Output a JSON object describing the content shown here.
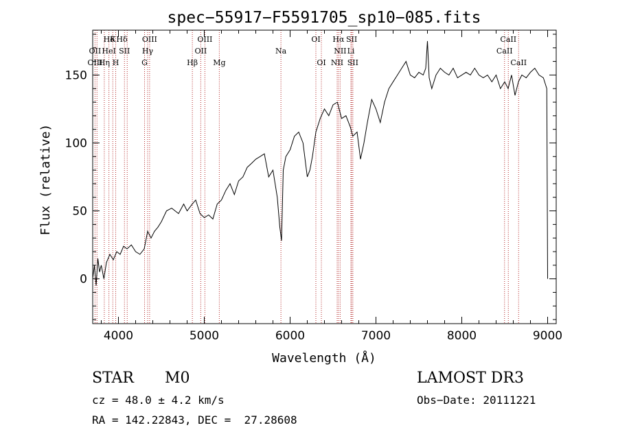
{
  "chart_data": {
    "type": "line",
    "title": "spec−55917−F5591705_sp10−085.fits",
    "xlabel": "Wavelength (Å)",
    "ylabel": "Flux (relative)",
    "xlim": [
      3700,
      9100
    ],
    "ylim": [
      -33,
      183
    ],
    "x_ticks": [
      4000,
      5000,
      6000,
      7000,
      8000,
      9000
    ],
    "y_ticks": [
      0,
      50,
      100,
      150
    ],
    "grid": false,
    "series": [
      {
        "color": "#000000",
        "x": [
          3700,
          3720,
          3740,
          3760,
          3780,
          3800,
          3830,
          3860,
          3900,
          3940,
          3980,
          4020,
          4060,
          4100,
          4150,
          4200,
          4250,
          4300,
          4340,
          4380,
          4420,
          4460,
          4500,
          4560,
          4620,
          4700,
          4760,
          4800,
          4860,
          4900,
          4950,
          5000,
          5050,
          5100,
          5150,
          5200,
          5250,
          5300,
          5350,
          5400,
          5450,
          5500,
          5550,
          5600,
          5650,
          5700,
          5750,
          5800,
          5850,
          5880,
          5900,
          5920,
          5950,
          6000,
          6050,
          6100,
          6150,
          6200,
          6230,
          6260,
          6300,
          6350,
          6400,
          6450,
          6500,
          6550,
          6600,
          6650,
          6700,
          6730,
          6780,
          6820,
          6860,
          6900,
          6950,
          7000,
          7050,
          7100,
          7150,
          7200,
          7250,
          7300,
          7350,
          7400,
          7450,
          7500,
          7550,
          7580,
          7600,
          7620,
          7650,
          7700,
          7750,
          7800,
          7850,
          7900,
          7950,
          8000,
          8050,
          8100,
          8150,
          8200,
          8250,
          8300,
          8350,
          8400,
          8450,
          8500,
          8540,
          8580,
          8620,
          8660,
          8700,
          8750,
          8800,
          8850,
          8900,
          8950,
          8990,
          9000
        ],
        "y": [
          0,
          10,
          -5,
          15,
          5,
          10,
          0,
          12,
          18,
          14,
          20,
          18,
          24,
          22,
          25,
          20,
          18,
          22,
          35,
          30,
          35,
          38,
          42,
          50,
          52,
          48,
          55,
          50,
          55,
          58,
          48,
          45,
          47,
          44,
          55,
          58,
          65,
          70,
          62,
          72,
          75,
          82,
          85,
          88,
          90,
          92,
          75,
          80,
          60,
          38,
          28,
          80,
          90,
          95,
          105,
          108,
          100,
          75,
          80,
          90,
          108,
          118,
          125,
          120,
          128,
          130,
          118,
          120,
          112,
          105,
          108,
          88,
          100,
          115,
          132,
          125,
          115,
          130,
          140,
          145,
          150,
          155,
          160,
          150,
          148,
          152,
          150,
          155,
          175,
          148,
          140,
          150,
          155,
          152,
          150,
          155,
          148,
          150,
          152,
          150,
          155,
          150,
          148,
          150,
          145,
          150,
          140,
          145,
          140,
          150,
          135,
          145,
          150,
          148,
          152,
          155,
          150,
          148,
          140,
          0
        ]
      }
    ],
    "line_labels": [
      {
        "text": "Hδ",
        "row": 1,
        "x": 3890
      },
      {
        "text": "K",
        "row": 1,
        "x": 3934
      },
      {
        "text": "Hδ",
        "row": 1,
        "x": 4040
      },
      {
        "text": "OIII",
        "row": 1,
        "x": 4363
      },
      {
        "text": "OIII",
        "row": 1,
        "x": 5007
      },
      {
        "text": "OI",
        "row": 1,
        "x": 6300
      },
      {
        "text": "Hα",
        "row": 1,
        "x": 6563
      },
      {
        "text": "SII",
        "row": 1,
        "x": 6717
      },
      {
        "text": "CaII",
        "row": 1,
        "x": 8542
      },
      {
        "text": "OII",
        "row": 2,
        "x": 3727
      },
      {
        "text": "HeI",
        "row": 2,
        "x": 3889
      },
      {
        "text": "SII",
        "row": 2,
        "x": 4070
      },
      {
        "text": "Hγ",
        "row": 2,
        "x": 4340
      },
      {
        "text": "OII",
        "row": 2,
        "x": 4959
      },
      {
        "text": "Na",
        "row": 2,
        "x": 5893
      },
      {
        "text": "NII",
        "row": 2,
        "x": 6583
      },
      {
        "text": "Li",
        "row": 2,
        "x": 6708
      },
      {
        "text": "CaII",
        "row": 2,
        "x": 8498
      },
      {
        "text": "OIII",
        "row": 3,
        "x": 3727
      },
      {
        "text": "Hη",
        "row": 3,
        "x": 3835
      },
      {
        "text": "H",
        "row": 3,
        "x": 3968
      },
      {
        "text": "G",
        "row": 3,
        "x": 4304
      },
      {
        "text": "Hβ",
        "row": 3,
        "x": 4861
      },
      {
        "text": "Mg",
        "row": 3,
        "x": 5175
      },
      {
        "text": "OI",
        "row": 3,
        "x": 6364
      },
      {
        "text": "NII",
        "row": 3,
        "x": 6548
      },
      {
        "text": "SII",
        "row": 3,
        "x": 6731
      },
      {
        "text": "CaII",
        "row": 3,
        "x": 8662
      }
    ],
    "marker_lines": [
      3727,
      3750,
      3835,
      3889,
      3934,
      3968,
      4070,
      4102,
      4304,
      4340,
      4363,
      4861,
      4959,
      5007,
      5175,
      5893,
      6300,
      6364,
      6548,
      6563,
      6583,
      6708,
      6717,
      6731,
      8498,
      8542,
      8662
    ],
    "marker_color": "#b22222"
  },
  "info": {
    "object_class": "STAR",
    "subclass": "M0",
    "survey": "LAMOST DR3",
    "cz": "cz = 48.0 ± 4.2 km/s",
    "obs_date": "Obs−Date: 20111221",
    "radec": "RA = 142.22843, DEC =  27.28608"
  }
}
